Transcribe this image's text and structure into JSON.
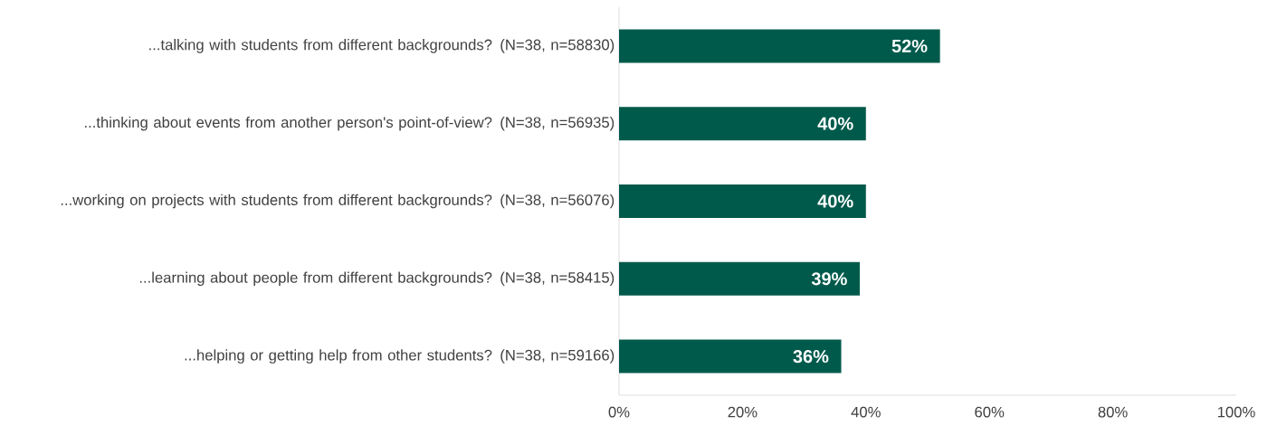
{
  "chart_data": {
    "type": "bar",
    "orientation": "horizontal",
    "categories": [
      "...talking with students from different backgrounds? (N=38, n=58830)",
      "...thinking about events from another person's point-of-view? (N=38, n=56935)",
      "...working on projects with students from different backgrounds? (N=38, n=56076)",
      "...learning about people from different backgrounds? (N=38, n=58415)",
      "...helping or getting help from other students? (N=38, n=59166)"
    ],
    "values": [
      52,
      40,
      40,
      39,
      36
    ],
    "value_labels": [
      "52%",
      "40%",
      "40%",
      "39%",
      "36%"
    ],
    "color": "#005a4b",
    "xlim": [
      0,
      100
    ],
    "xticks": [
      {
        "value": 0,
        "label": "0%"
      },
      {
        "value": 20,
        "label": "20%"
      },
      {
        "value": 40,
        "label": "40%"
      },
      {
        "value": 60,
        "label": "60%"
      },
      {
        "value": 80,
        "label": "80%"
      },
      {
        "value": 100,
        "label": "100%"
      }
    ],
    "grid": false
  }
}
